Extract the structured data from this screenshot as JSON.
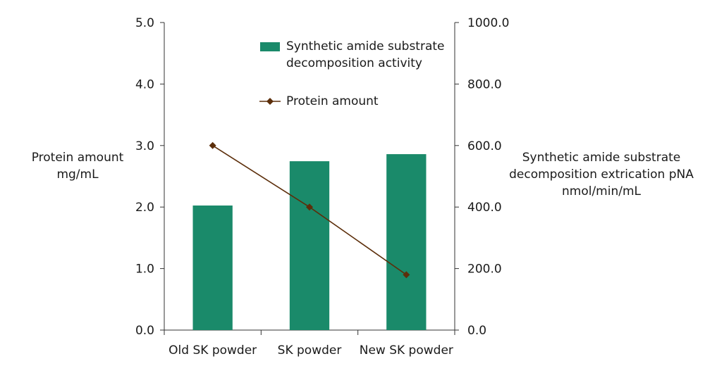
{
  "chart_data": {
    "type": "bar",
    "categories": [
      "Old SK powder",
      "SK powder",
      "New SK powder"
    ],
    "series": [
      {
        "name": "Synthetic amide substrate decomposition activity",
        "chart_type": "bar",
        "axis": "right",
        "color": "#1a8a6a",
        "values": [
          405,
          549,
          572
        ]
      },
      {
        "name": "Protein amount",
        "chart_type": "line",
        "axis": "left",
        "color": "#5c2e0a",
        "marker": "diamond",
        "values": [
          3.0,
          2.0,
          0.9
        ]
      }
    ],
    "y_left": {
      "label_lines": [
        "Protein amount",
        "mg/mL"
      ],
      "ylim": [
        0,
        5
      ],
      "ticks": [
        "0.0",
        "1.0",
        "2.0",
        "3.0",
        "4.0",
        "5.0"
      ]
    },
    "y_right": {
      "label_lines": [
        "Synthetic amide substrate",
        "decomposition extrication pNA",
        "nmol/min/mL"
      ],
      "ylim": [
        0,
        1000
      ],
      "ticks": [
        "0.0",
        "200.0",
        "400.0",
        "600.0",
        "800.0",
        "1000.0"
      ]
    },
    "legend": {
      "placement": "top-center",
      "bar_label_lines": [
        "Synthetic amide substrate",
        "decomposition activity"
      ],
      "line_label": "Protein amount"
    },
    "grid": false
  }
}
